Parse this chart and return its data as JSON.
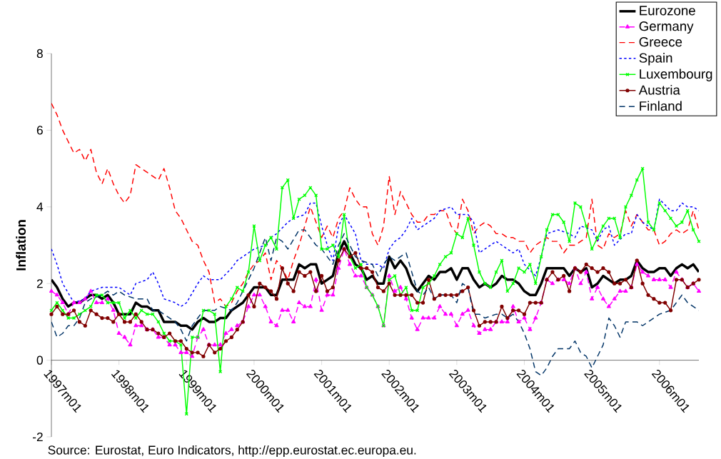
{
  "chart_data": {
    "type": "line",
    "ylabel": "Inflation",
    "annotations": [
      "Source: Eurostat, Euro Indicators, http://epp.eurostat.ec.europa.eu."
    ],
    "x": [
      "1997-01",
      "1997-02",
      "1997-03",
      "1997-04",
      "1997-05",
      "1997-06",
      "1997-07",
      "1997-08",
      "1997-09",
      "1997-10",
      "1997-11",
      "1997-12",
      "1998-01",
      "1998-02",
      "1998-03",
      "1998-04",
      "1998-05",
      "1998-06",
      "1998-07",
      "1998-08",
      "1998-09",
      "1998-10",
      "1998-11",
      "1998-12",
      "1999-01",
      "1999-02",
      "1999-03",
      "1999-04",
      "1999-05",
      "1999-06",
      "1999-07",
      "1999-08",
      "1999-09",
      "1999-10",
      "1999-11",
      "1999-12",
      "2000-01",
      "2000-02",
      "2000-03",
      "2000-04",
      "2000-05",
      "2000-06",
      "2000-07",
      "2000-08",
      "2000-09",
      "2000-10",
      "2000-11",
      "2000-12",
      "2001-01",
      "2001-02",
      "2001-03",
      "2001-04",
      "2001-05",
      "2001-06",
      "2001-07",
      "2001-08",
      "2001-09",
      "2001-10",
      "2001-11",
      "2001-12",
      "2002-01",
      "2002-02",
      "2002-03",
      "2002-04",
      "2002-05",
      "2002-06",
      "2002-07",
      "2002-08",
      "2002-09",
      "2002-10",
      "2002-11",
      "2002-12",
      "2003-01",
      "2003-02",
      "2003-03",
      "2003-04",
      "2003-05",
      "2003-06",
      "2003-07",
      "2003-08",
      "2003-09",
      "2003-10",
      "2003-11",
      "2003-12",
      "2004-01",
      "2004-02",
      "2004-03",
      "2004-04",
      "2004-05",
      "2004-06",
      "2004-07",
      "2004-08",
      "2004-09",
      "2004-10",
      "2004-11",
      "2004-12",
      "2005-01",
      "2005-02",
      "2005-03",
      "2005-04",
      "2005-05",
      "2005-06",
      "2005-07",
      "2005-08",
      "2005-09",
      "2005-10",
      "2005-11",
      "2005-12",
      "2006-01",
      "2006-02",
      "2006-03",
      "2006-04",
      "2006-05",
      "2006-06",
      "2006-07",
      "2006-08"
    ],
    "xlim": [
      "1997-01",
      "2006-08"
    ],
    "xticks": [
      {
        "value": "1997-01",
        "label": "1997m01"
      },
      {
        "value": "1998-01",
        "label": "1998m01"
      },
      {
        "value": "1999-01",
        "label": "1999m01"
      },
      {
        "value": "2000-01",
        "label": "2000m01"
      },
      {
        "value": "2001-01",
        "label": "2001m01"
      },
      {
        "value": "2002-01",
        "label": "2002m01"
      },
      {
        "value": "2003-01",
        "label": "2003m01"
      },
      {
        "value": "2004-01",
        "label": "2004m01"
      },
      {
        "value": "2005-01",
        "label": "2005m01"
      },
      {
        "value": "2006-01",
        "label": "2006m01"
      }
    ],
    "ylim": [
      -2,
      8
    ],
    "yticks": [
      -2,
      0,
      2,
      4,
      6,
      8
    ],
    "legend": "top right",
    "series": [
      {
        "name": "Eurozone",
        "color": "#000000",
        "line_style": "solid",
        "values": [
          2.1,
          1.9,
          1.6,
          1.4,
          1.5,
          1.5,
          1.6,
          1.7,
          1.7,
          1.6,
          1.7,
          1.5,
          1.2,
          1.2,
          1.2,
          1.5,
          1.4,
          1.4,
          1.3,
          1.3,
          1.0,
          1.0,
          1.0,
          0.9,
          0.9,
          0.8,
          1.0,
          1.1,
          1.0,
          1.0,
          1.1,
          1.1,
          1.3,
          1.4,
          1.5,
          1.7,
          1.9,
          1.9,
          1.9,
          1.7,
          1.7,
          2.1,
          2.1,
          2.1,
          2.5,
          2.4,
          2.5,
          2.5,
          2.0,
          2.1,
          2.2,
          2.8,
          3.1,
          2.8,
          2.5,
          2.4,
          2.1,
          2.2,
          2.0,
          2.0,
          2.7,
          2.4,
          2.6,
          2.4,
          2.0,
          1.8,
          2.0,
          2.2,
          2.1,
          2.3,
          2.3,
          2.4,
          2.1,
          2.4,
          2.4,
          2.1,
          1.9,
          2.0,
          1.9,
          2.0,
          2.2,
          2.1,
          2.1,
          2.0,
          1.8,
          1.7,
          1.7,
          2.0,
          2.4,
          2.4,
          2.4,
          2.4,
          2.2,
          2.4,
          2.3,
          2.4,
          1.9,
          2.0,
          2.2,
          2.1,
          2.0,
          2.1,
          2.1,
          2.2,
          2.6,
          2.4,
          2.3,
          2.3,
          2.4,
          2.4,
          2.2,
          2.4,
          2.5,
          2.4,
          2.5,
          2.3
        ]
      },
      {
        "name": "Germany",
        "color": "#ff00ff",
        "line_style": "dashed",
        "marker": "triangle",
        "values": [
          1.8,
          1.7,
          1.5,
          1.2,
          1.5,
          1.5,
          1.6,
          1.8,
          1.5,
          1.5,
          1.6,
          1.3,
          0.7,
          0.6,
          0.4,
          0.9,
          0.9,
          0.8,
          0.8,
          0.6,
          0.6,
          0.4,
          0.4,
          0.2,
          0.2,
          0.1,
          0.6,
          0.8,
          0.4,
          0.4,
          0.4,
          0.7,
          0.8,
          0.9,
          1.0,
          1.4,
          1.7,
          1.7,
          1.4,
          1.0,
          0.9,
          1.3,
          1.3,
          1.0,
          1.5,
          1.4,
          1.4,
          2.1,
          1.3,
          1.7,
          1.7,
          2.4,
          2.9,
          2.5,
          2.2,
          2.2,
          1.9,
          1.7,
          1.4,
          0.9,
          2.2,
          1.8,
          1.9,
          1.6,
          1.1,
          0.8,
          1.1,
          1.1,
          1.1,
          1.4,
          1.2,
          1.2,
          0.9,
          1.2,
          1.3,
          0.9,
          0.7,
          0.8,
          0.8,
          1.0,
          1.0,
          1.0,
          1.4,
          1.0,
          1.1,
          0.8,
          1.1,
          1.5,
          2.1,
          2.0,
          2.1,
          2.1,
          2.0,
          2.4,
          2.0,
          2.3,
          1.6,
          1.9,
          1.6,
          1.4,
          1.6,
          1.8,
          1.8,
          1.9,
          2.5,
          2.3,
          2.2,
          2.1,
          2.1,
          2.1,
          1.9,
          2.3,
          2.1,
          1.9,
          2.0,
          1.8
        ]
      },
      {
        "name": "Greece",
        "color": "#ff0000",
        "line_style": "dashed",
        "values": [
          6.7,
          6.4,
          6.0,
          5.7,
          5.4,
          5.5,
          5.2,
          5.5,
          4.9,
          4.6,
          5.0,
          4.6,
          4.3,
          4.1,
          4.3,
          5.1,
          5.0,
          4.9,
          4.8,
          4.7,
          5.0,
          4.5,
          3.9,
          3.7,
          3.4,
          3.1,
          3.0,
          2.6,
          2.3,
          1.5,
          1.6,
          1.4,
          1.5,
          1.8,
          2.0,
          2.3,
          2.5,
          2.6,
          2.8,
          2.1,
          2.6,
          2.4,
          2.1,
          2.6,
          3.0,
          3.5,
          4.0,
          3.6,
          3.2,
          3.5,
          3.2,
          3.7,
          3.9,
          4.5,
          4.2,
          4.0,
          4.0,
          3.3,
          3.0,
          3.5,
          4.8,
          3.8,
          4.4,
          4.1,
          3.8,
          3.6,
          3.6,
          3.8,
          3.8,
          3.9,
          3.9,
          3.5,
          3.3,
          4.2,
          3.9,
          3.3,
          3.5,
          3.6,
          3.5,
          3.3,
          3.3,
          3.2,
          3.2,
          3.1,
          3.1,
          2.8,
          3.0,
          3.1,
          3.2,
          3.1,
          3.1,
          2.8,
          3.0,
          3.0,
          3.1,
          3.2,
          4.2,
          3.0,
          2.9,
          3.3,
          3.2,
          3.3,
          3.9,
          3.5,
          3.8,
          3.6,
          3.4,
          3.4,
          3.0,
          3.1,
          3.3,
          3.4,
          3.3,
          3.4,
          3.9,
          3.4
        ]
      },
      {
        "name": "Spain",
        "color": "#0000ff",
        "line_style": "dotted",
        "x": [
          "1997-01",
          "1997-02",
          "1997-03",
          "1997-05",
          "1997-07",
          "1997-08",
          "1997-10",
          "1997-12",
          "1998-01",
          "1998-03",
          "1998-04",
          "1998-06",
          "1998-07",
          "1998-08",
          "1998-09",
          "1998-11",
          "1998-12",
          "1999-01",
          "1999-03",
          "1999-04",
          "1999-05",
          "1999-06",
          "1999-07",
          "1999-09",
          "1999-10",
          "1999-12",
          "2000-01",
          "2000-03",
          "2000-04",
          "2000-05",
          "2000-07",
          "2000-08",
          "2000-10",
          "2000-11",
          "2000-12",
          "2001-01",
          "2001-02",
          "2001-03",
          "2001-04",
          "2001-05",
          "2001-07",
          "2001-08",
          "2001-09",
          "2001-11",
          "2001-12",
          "2002-01",
          "2002-02",
          "2002-03",
          "2002-04",
          "2002-05",
          "2002-06",
          "2002-08",
          "2002-09",
          "2002-10",
          "2002-12",
          "2003-01",
          "2003-03",
          "2003-04",
          "2003-05",
          "2003-07",
          "2003-08",
          "2003-09",
          "2003-11",
          "2003-12",
          "2004-01",
          "2004-03",
          "2004-04",
          "2004-05",
          "2004-07",
          "2004-09",
          "2004-10",
          "2004-11",
          "2005-01",
          "2005-02",
          "2005-03",
          "2005-04",
          "2005-05",
          "2005-07",
          "2005-08",
          "2005-09",
          "2005-10",
          "2005-12",
          "2006-01",
          "2006-03",
          "2006-04",
          "2006-05",
          "2006-06",
          "2006-07",
          "2006-08"
        ],
        "values": [
          2.9,
          2.5,
          2.0,
          1.5,
          1.6,
          1.8,
          1.9,
          1.9,
          1.9,
          1.7,
          2.0,
          2.1,
          2.3,
          2.0,
          1.6,
          1.5,
          1.4,
          1.5,
          2.0,
          2.2,
          2.1,
          2.1,
          2.1,
          2.4,
          2.6,
          2.8,
          2.9,
          3.0,
          3.2,
          3.3,
          3.6,
          3.7,
          3.8,
          4.1,
          4.1,
          3.5,
          3.0,
          2.6,
          3.5,
          3.8,
          3.3,
          2.6,
          2.5,
          2.5,
          2.4,
          2.9,
          3.1,
          3.2,
          3.4,
          3.7,
          3.4,
          3.6,
          3.7,
          3.9,
          4.0,
          3.8,
          3.8,
          3.6,
          2.8,
          3.0,
          3.1,
          3.0,
          2.8,
          2.9,
          2.5,
          2.2,
          2.7,
          3.3,
          3.4,
          3.3,
          3.2,
          3.5,
          3.4,
          3.1,
          3.4,
          3.5,
          3.0,
          3.3,
          3.3,
          3.8,
          3.6,
          3.4,
          4.2,
          3.9,
          3.9,
          4.1,
          4.0,
          4.0,
          3.9
        ]
      },
      {
        "name": "Luxembourg",
        "color": "#00ff00",
        "line_style": "solid",
        "marker": "cross",
        "values": [
          1.3,
          1.5,
          1.3,
          1.1,
          1.1,
          1.2,
          1.3,
          1.4,
          1.7,
          1.7,
          1.5,
          1.5,
          1.5,
          1.1,
          1.3,
          1.1,
          1.3,
          1.2,
          1.2,
          1.0,
          0.7,
          0.5,
          0.5,
          0.4,
          -1.4,
          0.6,
          0.6,
          1.3,
          1.3,
          1.2,
          -0.3,
          1.4,
          1.6,
          1.9,
          1.8,
          2.3,
          3.5,
          2.6,
          3.0,
          3.2,
          2.9,
          4.5,
          4.7,
          3.7,
          4.2,
          4.3,
          4.5,
          4.3,
          2.9,
          2.9,
          3.0,
          2.7,
          3.8,
          2.7,
          2.4,
          2.5,
          1.9,
          1.7,
          1.4,
          0.9,
          2.1,
          2.2,
          1.7,
          1.9,
          1.3,
          1.3,
          1.9,
          2.0,
          2.2,
          2.5,
          2.7,
          2.8,
          3.3,
          3.2,
          3.7,
          3.0,
          2.3,
          2.0,
          1.9,
          2.3,
          2.6,
          1.8,
          2.0,
          2.4,
          2.3,
          2.5,
          2.0,
          2.7,
          3.4,
          3.8,
          3.8,
          3.6,
          3.1,
          4.1,
          4.0,
          3.5,
          2.9,
          3.2,
          3.5,
          3.7,
          3.7,
          3.2,
          4.0,
          4.3,
          4.7,
          5.0,
          3.6,
          3.4,
          4.1,
          3.9,
          3.7,
          3.5,
          3.6,
          3.9,
          3.4,
          3.1
        ]
      },
      {
        "name": "Austria",
        "color": "#800000",
        "line_style": "solid",
        "marker": "circle",
        "values": [
          1.2,
          1.4,
          1.2,
          1.2,
          1.3,
          1.0,
          0.9,
          1.3,
          1.2,
          1.1,
          1.1,
          1.0,
          1.2,
          1.0,
          1.0,
          1.2,
          1.0,
          0.8,
          0.8,
          0.7,
          0.6,
          0.7,
          0.5,
          0.5,
          0.3,
          0.2,
          0.2,
          0.1,
          0.4,
          0.2,
          0.3,
          0.5,
          0.6,
          0.8,
          1.0,
          1.7,
          1.4,
          2.0,
          1.9,
          1.8,
          1.6,
          2.4,
          2.0,
          1.8,
          2.3,
          2.2,
          2.3,
          1.8,
          2.2,
          1.8,
          1.9,
          2.6,
          2.9,
          2.7,
          2.8,
          2.4,
          2.4,
          2.3,
          1.9,
          1.8,
          2.0,
          1.7,
          1.7,
          1.7,
          1.7,
          1.5,
          1.5,
          2.1,
          1.6,
          1.7,
          1.7,
          1.7,
          1.7,
          1.8,
          1.9,
          1.3,
          0.9,
          1.0,
          1.0,
          1.0,
          1.4,
          1.1,
          1.3,
          1.3,
          1.2,
          1.5,
          1.5,
          1.5,
          2.1,
          2.3,
          2.1,
          2.2,
          1.8,
          2.4,
          2.3,
          2.5,
          2.4,
          2.3,
          2.4,
          2.3,
          2.0,
          2.0,
          2.1,
          1.9,
          2.6,
          2.0,
          1.7,
          1.6,
          1.5,
          1.5,
          1.3,
          2.1,
          2.1,
          1.9,
          2.0,
          2.1
        ]
      },
      {
        "name": "Finland",
        "color": "#003366",
        "line_style": "dashed",
        "x": [
          "1997-01",
          "1997-02",
          "1997-03",
          "1997-04",
          "1997-05",
          "1997-06",
          "1997-07",
          "1997-08",
          "1997-10",
          "1997-11",
          "1997-12",
          "1998-01",
          "1998-02",
          "1998-04",
          "1998-05",
          "1998-06",
          "1998-07",
          "1998-08",
          "1998-09",
          "1998-11",
          "1998-12",
          "1999-01",
          "1999-02",
          "1999-03",
          "1999-04",
          "1999-05",
          "1999-06",
          "1999-07",
          "1999-09",
          "1999-10",
          "1999-11",
          "1999-12",
          "2000-01",
          "2000-03",
          "2000-04",
          "2000-05",
          "2000-06",
          "2000-07",
          "2000-09",
          "2000-10",
          "2000-12",
          "2001-01",
          "2001-02",
          "2001-03",
          "2001-04",
          "2001-05",
          "2001-06",
          "2001-07",
          "2001-08",
          "2001-10",
          "2001-11",
          "2001-12",
          "2002-01",
          "2002-02",
          "2002-04",
          "2002-05",
          "2002-06",
          "2002-07",
          "2002-08",
          "2002-09",
          "2002-10",
          "2002-12",
          "2003-01",
          "2003-02",
          "2003-03",
          "2003-04",
          "2003-05",
          "2003-06",
          "2003-08",
          "2003-09",
          "2003-10",
          "2003-11",
          "2003-12",
          "2004-01",
          "2004-02",
          "2004-03",
          "2004-04",
          "2004-05",
          "2004-06",
          "2004-07",
          "2004-09",
          "2004-10",
          "2004-11",
          "2004-12",
          "2005-01",
          "2005-03",
          "2005-04",
          "2005-05",
          "2005-06",
          "2005-07",
          "2005-08",
          "2005-09",
          "2005-10",
          "2005-11",
          "2005-12",
          "2006-01",
          "2006-03",
          "2006-04",
          "2006-05",
          "2006-06",
          "2006-07",
          "2006-08"
        ],
        "values": [
          1.0,
          0.6,
          0.7,
          0.9,
          0.9,
          1.1,
          1.5,
          1.6,
          1.7,
          1.8,
          1.7,
          1.8,
          1.7,
          1.6,
          1.6,
          1.6,
          1.3,
          1.3,
          1.2,
          1.0,
          0.8,
          0.5,
          0.9,
          1.1,
          1.3,
          1.3,
          1.3,
          1.4,
          1.3,
          1.5,
          1.8,
          2.1,
          2.4,
          3.2,
          2.6,
          3.2,
          3.1,
          2.9,
          3.4,
          3.4,
          3.0,
          2.9,
          2.7,
          2.5,
          3.0,
          3.3,
          3.0,
          2.7,
          2.6,
          2.5,
          2.2,
          2.5,
          2.7,
          2.6,
          2.8,
          2.3,
          1.8,
          1.7,
          1.9,
          1.6,
          1.7,
          1.7,
          1.5,
          2.0,
          1.9,
          1.2,
          1.2,
          1.1,
          1.2,
          1.2,
          1.1,
          1.2,
          1.0,
          0.7,
          0.3,
          -0.3,
          -0.4,
          -0.2,
          0.1,
          0.3,
          0.3,
          0.5,
          0.2,
          0.1,
          -0.2,
          0.4,
          1.1,
          0.9,
          0.6,
          1.0,
          1.0,
          1.0,
          0.9,
          1.0,
          1.1,
          1.2,
          1.3,
          1.5,
          1.7,
          1.5,
          1.4,
          1.3
        ]
      }
    ]
  }
}
